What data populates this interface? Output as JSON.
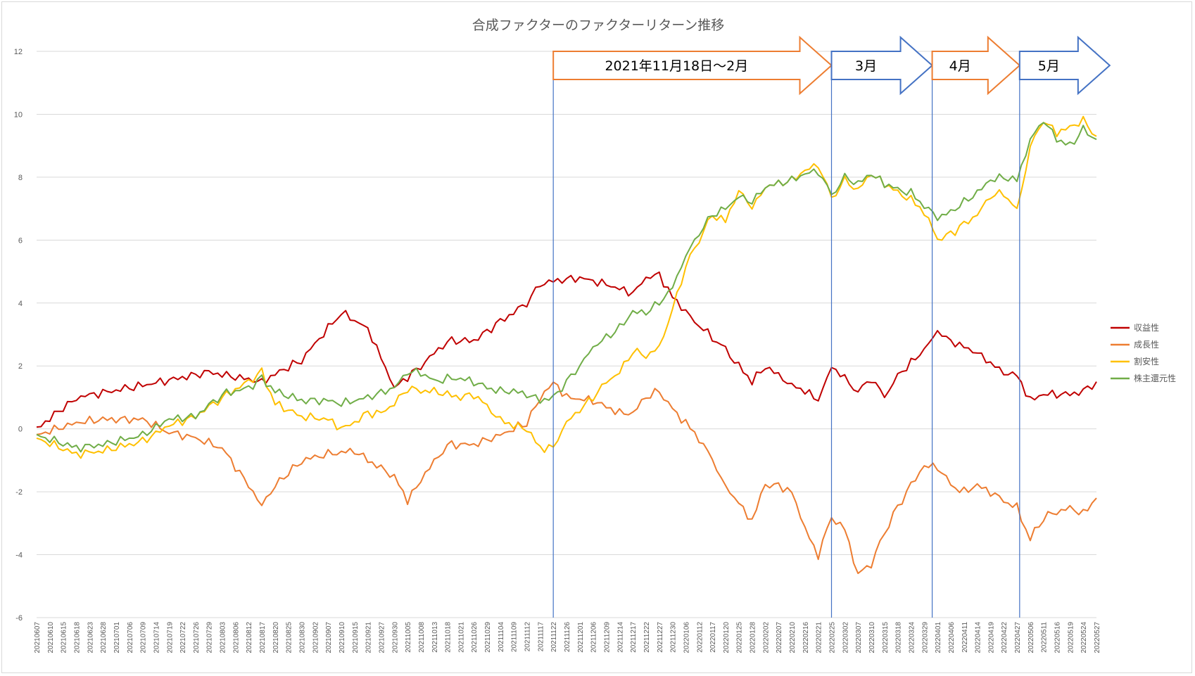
{
  "chart_data": {
    "type": "line",
    "title": "合成ファクターのファクターリターン推移",
    "xlabel": "",
    "ylabel": "",
    "ylim": [
      -6,
      12
    ],
    "yticks": [
      -6,
      -4,
      -2,
      0,
      2,
      4,
      6,
      8,
      10,
      12
    ],
    "grid": true,
    "legend_position": "right",
    "x_tick_labels": [
      "20210607",
      "20210610",
      "20210615",
      "20210618",
      "20210623",
      "20210628",
      "20210701",
      "20210706",
      "20210709",
      "20210714",
      "20210719",
      "20210722",
      "20210726",
      "20210729",
      "20210803",
      "20210806",
      "20210812",
      "20210817",
      "20210820",
      "20210825",
      "20210830",
      "20210902",
      "20210907",
      "20210910",
      "20210915",
      "20210921",
      "20210927",
      "20210930",
      "20211005",
      "20211008",
      "20211013",
      "20211018",
      "20211021",
      "20211026",
      "20211029",
      "20211104",
      "20211109",
      "20211112",
      "20211117",
      "20211122",
      "20211126",
      "20211201",
      "20211206",
      "20211209",
      "20211214",
      "20211217",
      "20211222",
      "20211227",
      "20211230",
      "20220106",
      "20220112",
      "20220117",
      "20220120",
      "20220125",
      "20220128",
      "20220202",
      "20220207",
      "20220210",
      "20220216",
      "20220221",
      "20220225",
      "20220302",
      "20220307",
      "20220310",
      "20220315",
      "20220318",
      "20220324",
      "20220329",
      "20220401",
      "20220406",
      "20220411",
      "20220414",
      "20220419",
      "20220422",
      "20220427",
      "20220506",
      "20220511",
      "20220516",
      "20220519",
      "20220524",
      "20220527"
    ],
    "series": [
      {
        "name": "収益性",
        "color": "#c00000",
        "points": [
          [
            0,
            0.0
          ],
          [
            3,
            1.0
          ],
          [
            7,
            1.3
          ],
          [
            13,
            1.8
          ],
          [
            17,
            1.5
          ],
          [
            20,
            2.2
          ],
          [
            23,
            3.7
          ],
          [
            25,
            3.2
          ],
          [
            27,
            1.3
          ],
          [
            29,
            2.0
          ],
          [
            31,
            2.8
          ],
          [
            33,
            2.8
          ],
          [
            35,
            3.4
          ],
          [
            37,
            4.0
          ],
          [
            38,
            4.6
          ],
          [
            39,
            4.7
          ],
          [
            41,
            4.8
          ],
          [
            43,
            4.6
          ],
          [
            45,
            4.3
          ],
          [
            46,
            4.8
          ],
          [
            47,
            4.9
          ],
          [
            48,
            4.2
          ],
          [
            49,
            3.7
          ],
          [
            50,
            3.3
          ],
          [
            52,
            2.5
          ],
          [
            54,
            1.5
          ],
          [
            55,
            2.0
          ],
          [
            57,
            1.4
          ],
          [
            58,
            1.2
          ],
          [
            59,
            0.9
          ],
          [
            60,
            2.0
          ],
          [
            62,
            1.2
          ],
          [
            63,
            1.6
          ],
          [
            64,
            1.0
          ],
          [
            65,
            1.7
          ],
          [
            67,
            2.5
          ],
          [
            68,
            3.1
          ],
          [
            69,
            2.8
          ],
          [
            71,
            2.4
          ],
          [
            73,
            1.8
          ],
          [
            74,
            1.7
          ],
          [
            75,
            0.9
          ],
          [
            76,
            1.1
          ],
          [
            78,
            1.1
          ],
          [
            79,
            1.2
          ],
          [
            80,
            1.5
          ]
        ]
      },
      {
        "name": "成長性",
        "color": "#ed7d31",
        "points": [
          [
            0,
            -0.2
          ],
          [
            3,
            0.2
          ],
          [
            5,
            0.3
          ],
          [
            8,
            0.3
          ],
          [
            10,
            -0.1
          ],
          [
            12,
            -0.3
          ],
          [
            14,
            -0.6
          ],
          [
            17,
            -2.4
          ],
          [
            18,
            -1.8
          ],
          [
            20,
            -1.0
          ],
          [
            22,
            -0.8
          ],
          [
            24,
            -0.7
          ],
          [
            25,
            -1.0
          ],
          [
            27,
            -1.5
          ],
          [
            28,
            -2.3
          ],
          [
            29,
            -1.6
          ],
          [
            31,
            -0.5
          ],
          [
            33,
            -0.5
          ],
          [
            35,
            -0.2
          ],
          [
            37,
            0.2
          ],
          [
            38,
            1.0
          ],
          [
            39,
            1.5
          ],
          [
            40,
            1.0
          ],
          [
            42,
            0.9
          ],
          [
            44,
            0.5
          ],
          [
            45,
            0.5
          ],
          [
            46,
            1.0
          ],
          [
            47,
            1.2
          ],
          [
            48,
            0.6
          ],
          [
            49,
            0.2
          ],
          [
            50,
            -0.3
          ],
          [
            51,
            -1.0
          ],
          [
            52,
            -1.8
          ],
          [
            53,
            -2.4
          ],
          [
            54,
            -2.9
          ],
          [
            55,
            -1.8
          ],
          [
            56,
            -1.8
          ],
          [
            57,
            -2.0
          ],
          [
            58,
            -3.2
          ],
          [
            59,
            -4.0
          ],
          [
            60,
            -2.8
          ],
          [
            61,
            -3.2
          ],
          [
            62,
            -4.6
          ],
          [
            63,
            -4.3
          ],
          [
            64,
            -3.3
          ],
          [
            65,
            -2.5
          ],
          [
            66,
            -1.8
          ],
          [
            67,
            -1.2
          ],
          [
            68,
            -1.2
          ],
          [
            69,
            -1.8
          ],
          [
            70,
            -2.0
          ],
          [
            71,
            -1.8
          ],
          [
            72,
            -2.0
          ],
          [
            73,
            -2.3
          ],
          [
            74,
            -2.5
          ],
          [
            75,
            -3.5
          ],
          [
            76,
            -2.8
          ],
          [
            78,
            -2.5
          ],
          [
            79,
            -2.7
          ],
          [
            80,
            -2.2
          ]
        ]
      },
      {
        "name": "割安性",
        "color": "#ffc000",
        "points": [
          [
            0,
            -0.3
          ],
          [
            3,
            -0.8
          ],
          [
            5,
            -0.7
          ],
          [
            8,
            -0.4
          ],
          [
            10,
            0.1
          ],
          [
            12,
            0.4
          ],
          [
            14,
            1.0
          ],
          [
            16,
            1.5
          ],
          [
            17,
            1.8
          ],
          [
            18,
            0.8
          ],
          [
            20,
            0.4
          ],
          [
            22,
            0.3
          ],
          [
            23,
            0.0
          ],
          [
            24,
            0.2
          ],
          [
            25,
            0.5
          ],
          [
            26,
            0.5
          ],
          [
            27,
            0.8
          ],
          [
            28,
            1.3
          ],
          [
            29,
            1.2
          ],
          [
            30,
            1.2
          ],
          [
            31,
            1.1
          ],
          [
            32,
            1.0
          ],
          [
            33,
            1.1
          ],
          [
            34,
            0.7
          ],
          [
            35,
            0.3
          ],
          [
            36,
            0.1
          ],
          [
            37,
            0.0
          ],
          [
            38,
            -0.6
          ],
          [
            39,
            -0.6
          ],
          [
            40,
            0.2
          ],
          [
            41,
            0.6
          ],
          [
            42,
            1.0
          ],
          [
            43,
            1.5
          ],
          [
            44,
            1.8
          ],
          [
            45,
            2.5
          ],
          [
            46,
            2.3
          ],
          [
            47,
            2.6
          ],
          [
            48,
            3.8
          ],
          [
            49,
            5.2
          ],
          [
            50,
            6.0
          ],
          [
            51,
            6.8
          ],
          [
            52,
            6.6
          ],
          [
            53,
            7.6
          ],
          [
            54,
            7.0
          ],
          [
            55,
            7.7
          ],
          [
            56,
            7.8
          ],
          [
            57,
            7.9
          ],
          [
            58,
            8.2
          ],
          [
            59,
            8.4
          ],
          [
            60,
            7.3
          ],
          [
            61,
            7.9
          ],
          [
            62,
            7.6
          ],
          [
            63,
            8.1
          ],
          [
            64,
            7.8
          ],
          [
            65,
            7.5
          ],
          [
            66,
            7.3
          ],
          [
            67,
            6.9
          ],
          [
            68,
            6.0
          ],
          [
            69,
            6.2
          ],
          [
            70,
            6.5
          ],
          [
            71,
            6.8
          ],
          [
            72,
            7.4
          ],
          [
            73,
            7.5
          ],
          [
            74,
            6.9
          ],
          [
            75,
            9.0
          ],
          [
            76,
            9.8
          ],
          [
            77,
            9.4
          ],
          [
            78,
            9.6
          ],
          [
            79,
            9.8
          ],
          [
            80,
            9.3
          ]
        ]
      },
      {
        "name": "株主還元性",
        "color": "#70ad47",
        "points": [
          [
            0,
            -0.2
          ],
          [
            3,
            -0.6
          ],
          [
            5,
            -0.5
          ],
          [
            8,
            -0.2
          ],
          [
            10,
            0.3
          ],
          [
            12,
            0.4
          ],
          [
            14,
            1.1
          ],
          [
            16,
            1.3
          ],
          [
            17,
            1.6
          ],
          [
            18,
            1.2
          ],
          [
            20,
            0.9
          ],
          [
            22,
            0.9
          ],
          [
            23,
            0.8
          ],
          [
            25,
            1.0
          ],
          [
            27,
            1.3
          ],
          [
            28,
            1.8
          ],
          [
            29,
            1.8
          ],
          [
            30,
            1.5
          ],
          [
            31,
            1.6
          ],
          [
            32,
            1.6
          ],
          [
            33,
            1.5
          ],
          [
            34,
            1.3
          ],
          [
            35,
            1.2
          ],
          [
            36,
            1.2
          ],
          [
            37,
            1.1
          ],
          [
            38,
            0.9
          ],
          [
            39,
            1.0
          ],
          [
            40,
            1.5
          ],
          [
            41,
            2.0
          ],
          [
            42,
            2.6
          ],
          [
            43,
            2.9
          ],
          [
            44,
            3.2
          ],
          [
            45,
            3.7
          ],
          [
            46,
            3.7
          ],
          [
            47,
            4.0
          ],
          [
            48,
            4.5
          ],
          [
            49,
            5.5
          ],
          [
            50,
            6.2
          ],
          [
            51,
            6.8
          ],
          [
            52,
            7.0
          ],
          [
            53,
            7.4
          ],
          [
            54,
            7.2
          ],
          [
            55,
            7.7
          ],
          [
            56,
            7.8
          ],
          [
            57,
            7.9
          ],
          [
            58,
            8.1
          ],
          [
            59,
            8.2
          ],
          [
            60,
            7.4
          ],
          [
            61,
            8.0
          ],
          [
            62,
            7.8
          ],
          [
            63,
            8.1
          ],
          [
            64,
            7.8
          ],
          [
            65,
            7.6
          ],
          [
            66,
            7.5
          ],
          [
            67,
            7.1
          ],
          [
            68,
            6.7
          ],
          [
            69,
            6.9
          ],
          [
            70,
            7.2
          ],
          [
            71,
            7.5
          ],
          [
            72,
            7.9
          ],
          [
            73,
            8.0
          ],
          [
            74,
            7.9
          ],
          [
            75,
            9.2
          ],
          [
            76,
            9.8
          ],
          [
            77,
            9.2
          ],
          [
            78,
            9.0
          ],
          [
            79,
            9.5
          ],
          [
            80,
            9.2
          ]
        ]
      }
    ],
    "annotations": {
      "arrows": [
        {
          "label": "2021年11月18日～2月",
          "color": "#ed7d31",
          "from_index": 39,
          "to_index": 60
        },
        {
          "label": "3月",
          "color": "#4472c4",
          "from_index": 60,
          "to_index": 67.6
        },
        {
          "label": "4月",
          "color": "#ed7d31",
          "from_index": 67.6,
          "to_index": 74.2
        },
        {
          "label": "5月",
          "color": "#4472c4",
          "from_index": 74.2,
          "to_index": 81
        }
      ],
      "vertical_lines": [
        {
          "x_index": 39,
          "color": "#4472c4"
        },
        {
          "x_index": 60,
          "color": "#4472c4"
        },
        {
          "x_index": 67.6,
          "color": "#4472c4"
        },
        {
          "x_index": 74.2,
          "color": "#4472c4"
        }
      ]
    }
  }
}
